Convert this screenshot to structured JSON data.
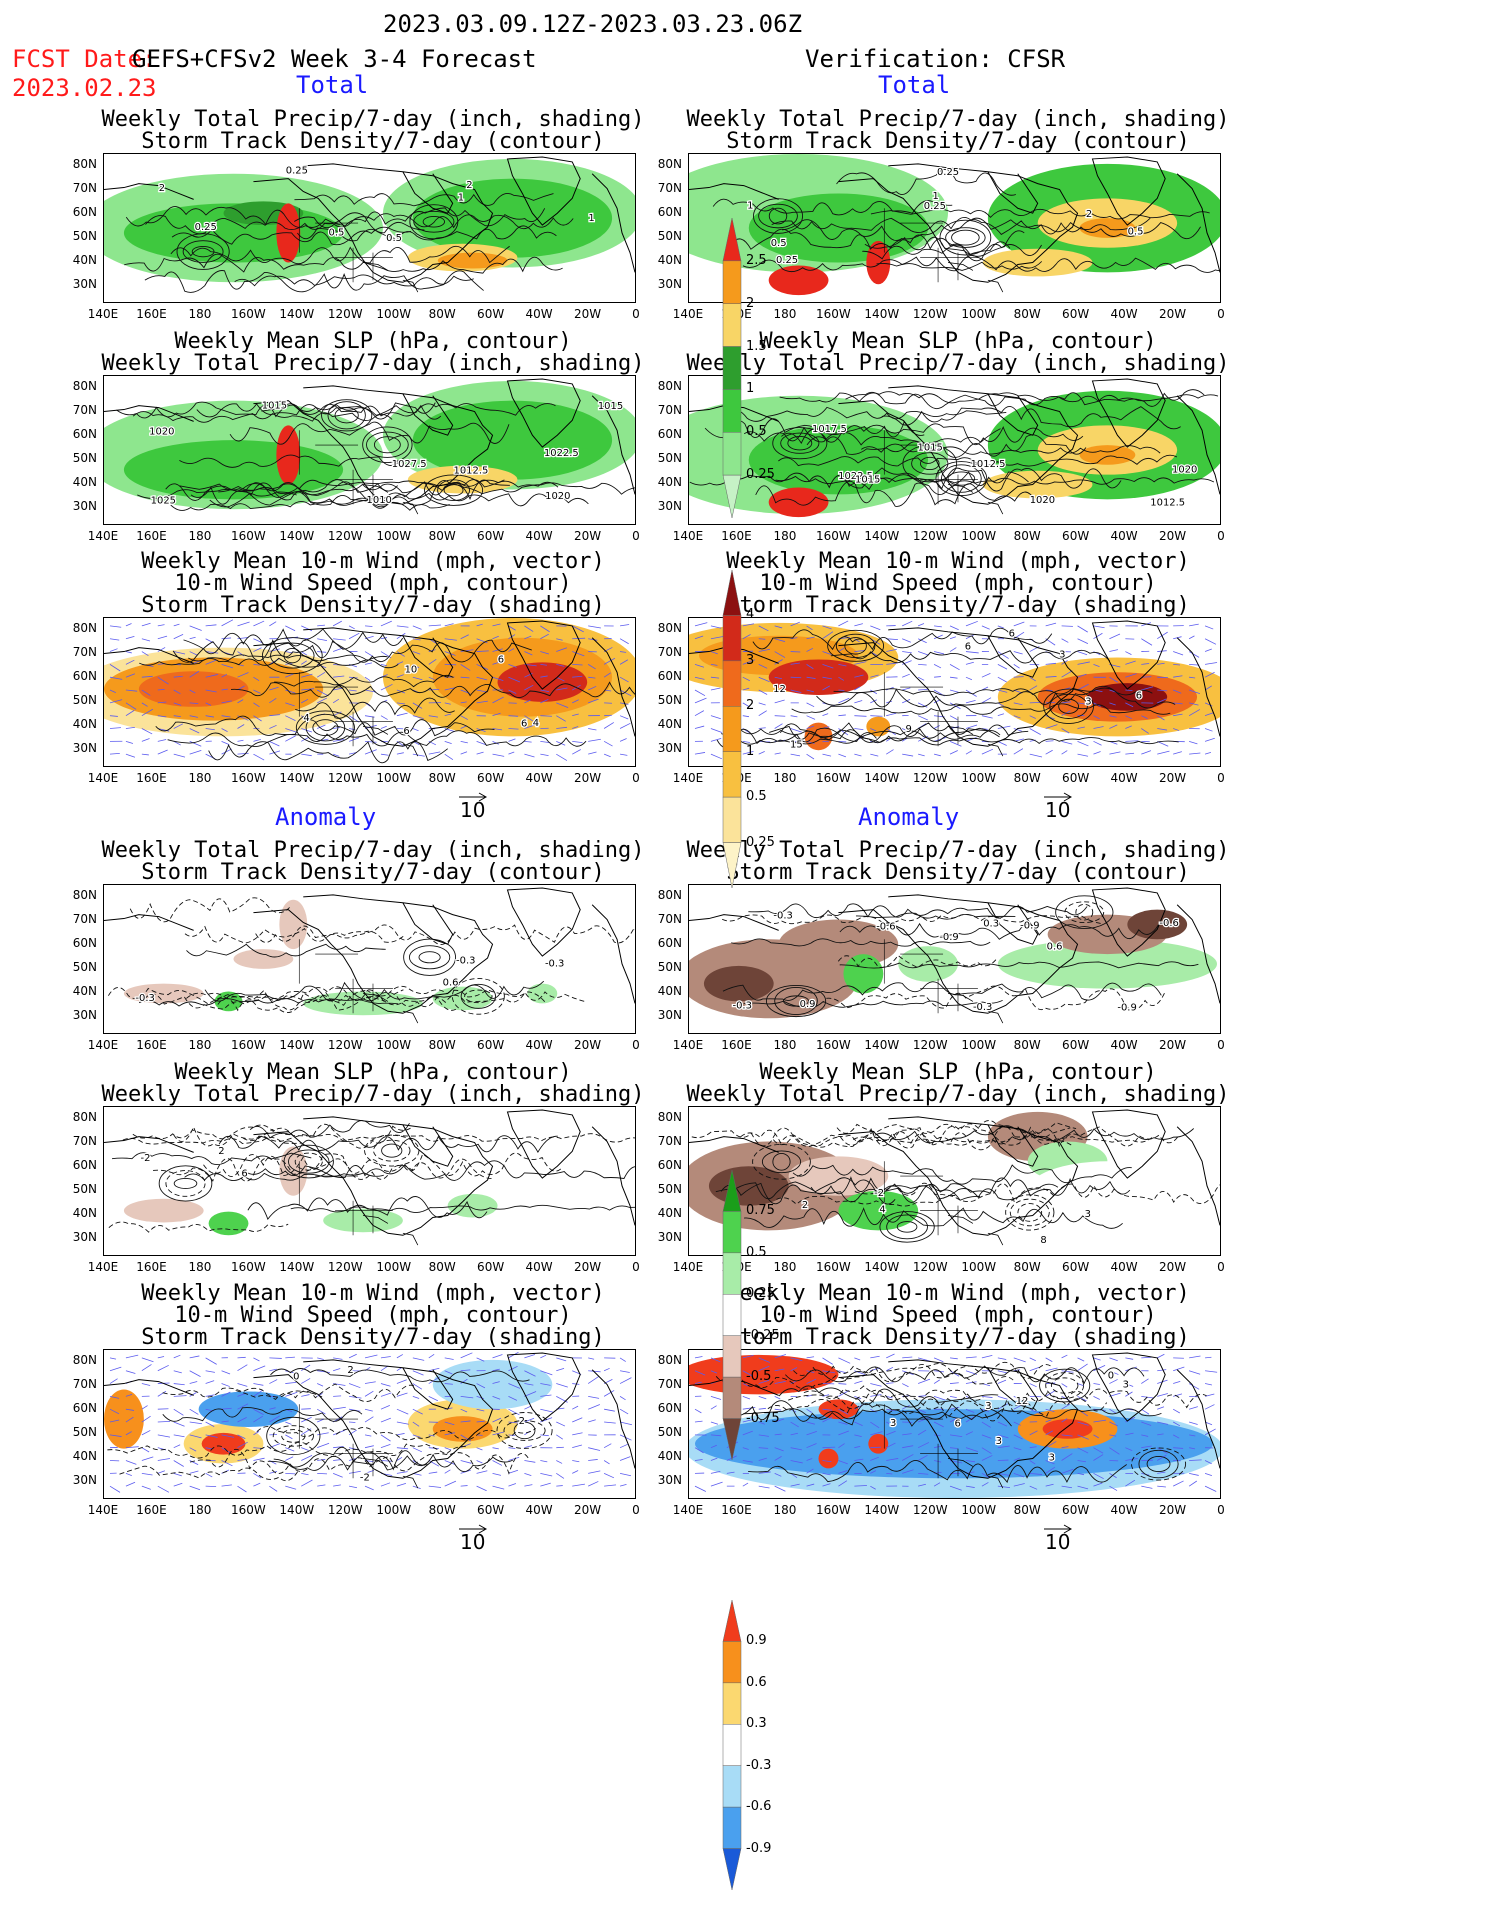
{
  "header": {
    "date_range": "2023.03.09.12Z-2023.03.23.06Z",
    "fcst_label": "FCST Date:",
    "forecast_name": "GEFS+CFSv2 Week 3-4 Forecast",
    "fcst_date": "2023.02.23",
    "verification": "Verification: CFSR"
  },
  "sections": {
    "total": "Total",
    "anomaly": "Anomaly"
  },
  "panel_titles": {
    "precip_storm": [
      "Weekly Total Precip/7-day (inch, shading)",
      "Storm Track Density/7-day (contour)"
    ],
    "slp_precip": [
      "Weekly Mean SLP (hPa, contour)",
      "Weekly Total Precip/7-day (inch, shading)"
    ],
    "wind": [
      "Weekly Mean 10-m Wind (mph, vector)",
      "10-m Wind Speed (mph, contour)",
      "Storm Track Density/7-day (shading)"
    ]
  },
  "axes": {
    "lat_labels": [
      "80N",
      "70N",
      "60N",
      "50N",
      "40N",
      "30N"
    ],
    "lon_labels": [
      "140E",
      "160E",
      "180",
      "160W",
      "140W",
      "120W",
      "100W",
      "80W",
      "60W",
      "40W",
      "20W",
      "0"
    ]
  },
  "vector_reference": "10",
  "colorbars": {
    "precip_total": {
      "labels": [
        "2.5",
        "2",
        "1.5",
        "1",
        "0.5",
        "0.25"
      ],
      "colors": [
        "#e8281c",
        "#f59a1c",
        "#f8d566",
        "#2e9e2e",
        "#3ec83e",
        "#8ee68e",
        "#c6f2c6"
      ]
    },
    "storm_total": {
      "labels": [
        "4",
        "3",
        "2",
        "1",
        "0.5",
        "0.25"
      ],
      "colors": [
        "#8c1010",
        "#d22a1a",
        "#ef6a1c",
        "#f59a1c",
        "#f8c040",
        "#fbe39a",
        "#fdf3c8"
      ]
    },
    "precip_anom": {
      "labels": [
        "0.75",
        "0.5",
        "0.25",
        "-0.25",
        "-0.5",
        "-0.75"
      ],
      "colors": [
        "#1a9e1a",
        "#4ed24e",
        "#a8eca8",
        "#ffffff",
        "#e6c8bc",
        "#b48a7a",
        "#6e4438"
      ]
    },
    "storm_anom": {
      "labels": [
        "0.9",
        "0.6",
        "0.3",
        "-0.3",
        "-0.6",
        "-0.9"
      ],
      "colors": [
        "#f03c1c",
        "#f7901c",
        "#fbd870",
        "#ffffff",
        "#a8dcf6",
        "#4aa0ee",
        "#1a5ad8"
      ]
    }
  },
  "contour_labels": {
    "p1": [
      "0.25",
      "2",
      "1",
      "0.5",
      "0.5",
      "0.25",
      "2",
      "1"
    ],
    "p2": [
      "0.25",
      "0.5",
      "0.25",
      "1",
      "0.5",
      "1",
      "0.25",
      "2"
    ],
    "p3": [
      "1027.5",
      "1025",
      "1015",
      "1010",
      "1012.5",
      "1015",
      "1020",
      "1022.5",
      "1020"
    ],
    "p4": [
      "1020",
      "1017.5",
      "1015",
      "1012.5",
      "1022.5",
      "1012.5",
      "1015",
      "1020"
    ],
    "p5": [
      "6",
      "4",
      "6",
      "10",
      "6",
      "4"
    ],
    "p6": [
      "6",
      "6",
      "3",
      "6",
      "9",
      "3",
      "12",
      "15"
    ],
    "p7": [
      "-0.3",
      "-0.3",
      "-0.3",
      "0.6"
    ],
    "p8": [
      "-0.3",
      "-0.9",
      "-0.3",
      "0.6",
      "-0.3",
      "-0.9",
      "-0.6",
      "-0.6",
      "-0.9",
      "0.9",
      "0.3"
    ],
    "p9": [
      "6",
      "-2",
      "2"
    ],
    "p10": [
      "4",
      "2",
      "-2",
      "3",
      "8"
    ],
    "p11": [
      "2",
      "0",
      "-2",
      "2"
    ],
    "p12": [
      "3",
      "6",
      "12",
      "3",
      "0",
      "3",
      "3",
      "3"
    ]
  }
}
